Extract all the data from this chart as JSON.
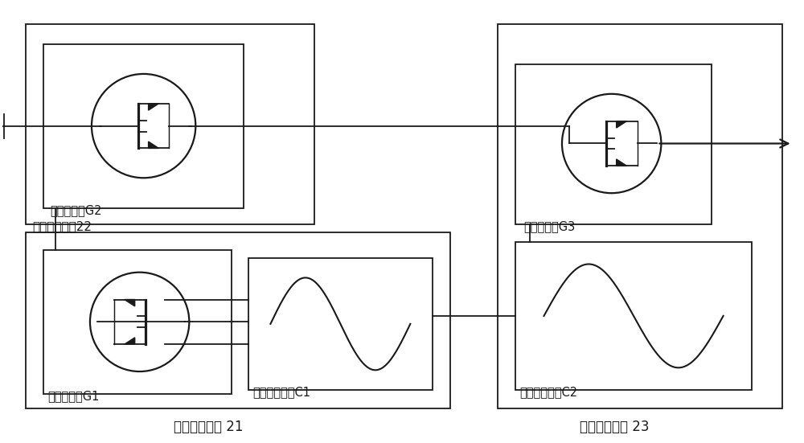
{
  "bg_color": "#ffffff",
  "line_color": "#1a1a1a",
  "fig_width": 10.0,
  "fig_height": 5.51,
  "dpi": 100,
  "labels": {
    "g2_label": "第二晶体管G2",
    "switch22_label": "一级选通开关22",
    "g1_label": "第一晶体管G1",
    "c1_label": "第一逻辑电路C1",
    "logic21_label": "一级逻辑模块 21",
    "g3_label": "第三晶体管G3",
    "c2_label": "第二逻辑电路C2",
    "module23_label": "聚合传输模块 23"
  }
}
